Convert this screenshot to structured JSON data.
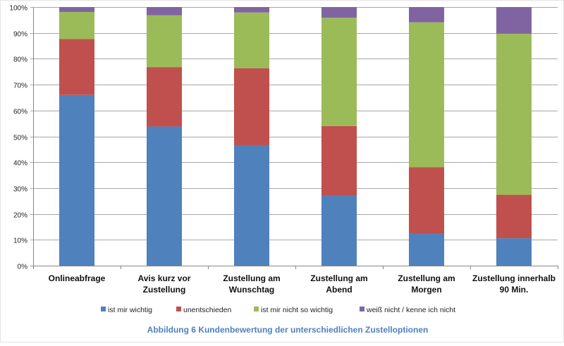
{
  "chart_data": {
    "type": "bar",
    "stacked": true,
    "title": "",
    "caption": "Abbildung 6 Kundenbewertung der unterschiedlichen Zustelloptionen",
    "xlabel": "",
    "ylabel": "",
    "ylim": [
      0,
      100
    ],
    "yticks": [
      "0%",
      "10%",
      "20%",
      "30%",
      "40%",
      "50%",
      "60%",
      "70%",
      "80%",
      "90%",
      "100%"
    ],
    "grid": true,
    "legend_position": "bottom",
    "categories": [
      [
        "Onlineabfrage"
      ],
      [
        "Avis kurz vor",
        "Zustellung"
      ],
      [
        "Zustellung am",
        "Wunschtag"
      ],
      [
        "Zustellung am",
        "Abend"
      ],
      [
        "Zustellung am",
        "Morgen"
      ],
      [
        "Zustellung innerhalb",
        "90 Min."
      ]
    ],
    "series": [
      {
        "name": "ist mir wichtig",
        "color": "#4F81BD",
        "values": [
          66.0,
          53.8,
          46.6,
          27.0,
          12.4,
          10.6
        ]
      },
      {
        "name": "unentschieden",
        "color": "#C0504D",
        "values": [
          21.6,
          23.0,
          29.7,
          27.0,
          25.7,
          16.8
        ]
      },
      {
        "name": "ist mir nicht so wichtig",
        "color": "#9BBB59",
        "values": [
          10.5,
          20.0,
          21.6,
          41.9,
          56.0,
          62.3
        ]
      },
      {
        "name": "weiß nicht / kenne ich nicht",
        "color": "#8064A2",
        "values": [
          1.9,
          3.2,
          2.1,
          4.1,
          5.9,
          10.3
        ]
      }
    ],
    "caption_color": "#4F81BD"
  }
}
